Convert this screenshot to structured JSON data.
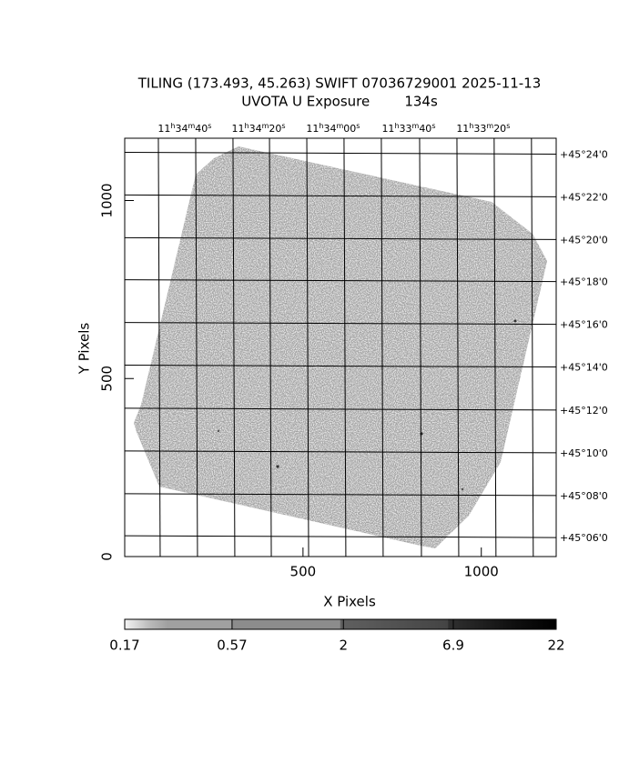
{
  "chart_data": {
    "type": "image",
    "title": "TILING (173.493, 45.263) SWIFT 07036729001 2025-11-13",
    "subtitle": "UVOTA U Exposure        134s",
    "xlabel": "X Pixels",
    "ylabel": "Y Pixels",
    "xlim": [
      0,
      1210
    ],
    "ylim": [
      0,
      1175
    ],
    "xticks": [
      500,
      1000
    ],
    "yticks": [
      0,
      500,
      1000
    ],
    "x2ticks": [
      {
        "value": 199,
        "label": "11h34m40s"
      },
      {
        "value": 406,
        "label": "11h34m20s"
      },
      {
        "value": 615,
        "label": "11h34m00s"
      },
      {
        "value": 827,
        "label": "11h33m40s"
      },
      {
        "value": 1036,
        "label": "11h33m20s"
      }
    ],
    "y2ticks": [
      {
        "value": 1133,
        "label": "+45°24'0"
      },
      {
        "value": 1013,
        "label": "+45°22'0"
      },
      {
        "value": 893,
        "label": "+45°20'0"
      },
      {
        "value": 775,
        "label": "+45°18'0"
      },
      {
        "value": 655,
        "label": "+45°16'0"
      },
      {
        "value": 535,
        "label": "+45°14'0"
      },
      {
        "value": 414,
        "label": "+45°12'0"
      },
      {
        "value": 294,
        "label": "+45°10'0"
      },
      {
        "value": 174,
        "label": "+45°08'0"
      },
      {
        "value": 56,
        "label": "+45°06'0"
      }
    ],
    "colorbar": {
      "lim": [
        0.17,
        22
      ],
      "log": true,
      "ticks": [
        0.17,
        0.57,
        2,
        6.9,
        22
      ]
    }
  }
}
